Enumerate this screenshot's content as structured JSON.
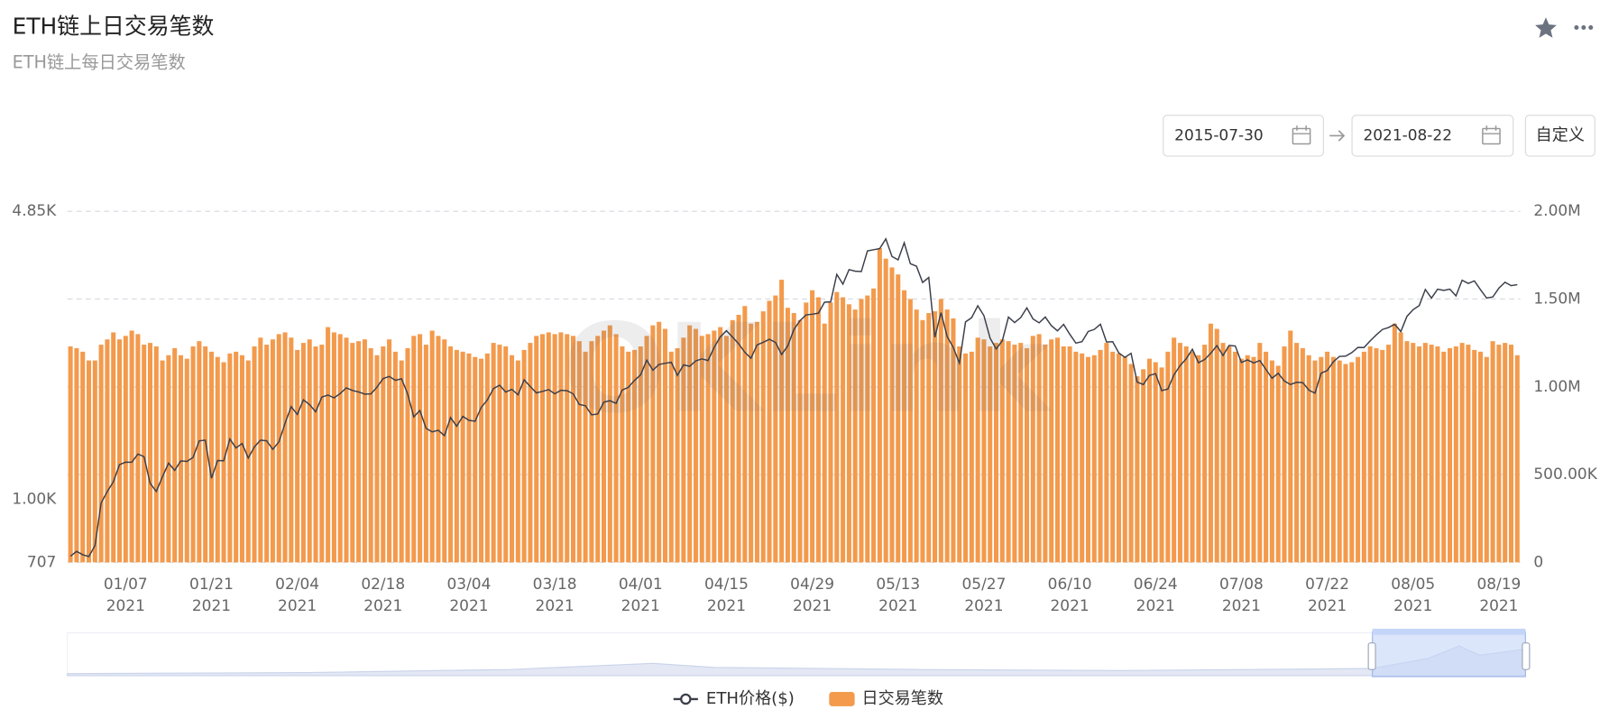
{
  "chart_data": {
    "type": "bar",
    "title": "ETH链上日交易笔数",
    "subtitle": "ETH链上每日交易笔数",
    "categories": [
      null,
      null,
      null,
      null,
      null,
      null,
      null,
      null,
      null,
      "01/07\n2021",
      null,
      null,
      null,
      null,
      null,
      null,
      null,
      null,
      null,
      null,
      null,
      null,
      null,
      "01/21\n2021",
      null,
      null,
      null,
      null,
      null,
      null,
      null,
      null,
      null,
      null,
      null,
      null,
      null,
      "02/04\n2021",
      null,
      null,
      null,
      null,
      null,
      null,
      null,
      null,
      null,
      null,
      null,
      null,
      null,
      "02/18\n2021",
      null,
      null,
      null,
      null,
      null,
      null,
      null,
      null,
      null,
      null,
      null,
      null,
      null,
      "03/04\n2021",
      null,
      null,
      null,
      null,
      null,
      null,
      null,
      null,
      null,
      null,
      null,
      null,
      null,
      "03/18\n2021",
      null,
      null,
      null,
      null,
      null,
      null,
      null,
      null,
      null,
      null,
      null,
      null,
      null,
      "04/01\n2021",
      null,
      null,
      null,
      null,
      null,
      null,
      null,
      null,
      null,
      null,
      null,
      null,
      null,
      "04/15\n2021",
      null,
      null,
      null,
      null,
      null,
      null,
      null,
      null,
      null,
      null,
      null,
      null,
      null,
      "04/29\n2021",
      null,
      null,
      null,
      null,
      null,
      null,
      null,
      null,
      null,
      null,
      null,
      null,
      null,
      "05/13\n2021",
      null,
      null,
      null,
      null,
      null,
      null,
      null,
      null,
      null,
      null,
      null,
      null,
      null,
      "05/27\n2021",
      null,
      null,
      null,
      null,
      null,
      null,
      null,
      null,
      null,
      null,
      null,
      null,
      null,
      "06/10\n2021",
      null,
      null,
      null,
      null,
      null,
      null,
      null,
      null,
      null,
      null,
      null,
      null,
      null,
      "06/24\n2021",
      null,
      null,
      null,
      null,
      null,
      null,
      null,
      null,
      null,
      null,
      null,
      null,
      null,
      "07/08\n2021",
      null,
      null,
      null,
      null,
      null,
      null,
      null,
      null,
      null,
      null,
      null,
      null,
      null,
      "07/22\n2021",
      null,
      null,
      null,
      null,
      null,
      null,
      null,
      null,
      null,
      null,
      null,
      null,
      null,
      "08/05\n2021",
      null,
      null,
      null,
      null,
      null,
      null,
      null,
      null,
      null,
      null,
      null,
      null,
      null,
      "08/19\n2021",
      null,
      null,
      null
    ],
    "series": [
      {
        "name": "ETH价格($)",
        "type": "line",
        "color": "#3b3f4a",
        "values": [
          731,
          751,
          737,
          730,
          775,
          979,
          1042,
          1100,
          1208,
          1225,
          1224,
          1281,
          1262,
          1090,
          1043,
          1130,
          1218,
          1171,
          1233,
          1230,
          1257,
          1377,
          1382,
          1121,
          1236,
          1234,
          1391,
          1324,
          1357,
          1253,
          1332,
          1382,
          1377,
          1314,
          1369,
          1515,
          1661,
          1591,
          1724,
          1679,
          1614,
          1750,
          1770,
          1743,
          1785,
          1841,
          1815,
          1800,
          1779,
          1781,
          1848,
          1937,
          1960,
          1919,
          1935,
          1781,
          1570,
          1626,
          1475,
          1446,
          1459,
          1416,
          1564,
          1492,
          1575,
          1541,
          1533,
          1654,
          1723,
          1834,
          1868,
          1799,
          1826,
          1772,
          1924,
          1854,
          1791,
          1806,
          1823,
          1782,
          1817,
          1812,
          1782,
          1681,
          1669,
          1588,
          1595,
          1702,
          1716,
          1691,
          1819,
          1846,
          1918,
          1977,
          2143,
          2028,
          2093,
          2107,
          2118,
          1971,
          2088,
          2072,
          2135,
          2158,
          2139,
          2299,
          2435,
          2519,
          2431,
          2344,
          2237,
          2166,
          2330,
          2364,
          2403,
          2363,
          2211,
          2317,
          2534,
          2662,
          2747,
          2757,
          2773,
          2945,
          2950,
          3431,
          3253,
          3522,
          3491,
          3484,
          3902,
          3928,
          3952,
          4168,
          3785,
          3716,
          4079,
          3638,
          3588,
          3282,
          3374,
          2430,
          2782,
          2441,
          2298,
          2109,
          2643,
          2706,
          2888,
          2736,
          2419,
          2279,
          2384,
          2714,
          2634,
          2707,
          2855,
          2688,
          2630,
          2715,
          2590,
          2517,
          2608,
          2471,
          2353,
          2372,
          2508,
          2537,
          2610,
          2367,
          2372,
          2230,
          2177,
          2225,
          1900,
          1875,
          1971,
          1990,
          1813,
          1829,
          1978,
          2080,
          2160,
          2275,
          2113,
          2150,
          2226,
          2321,
          2198,
          2324,
          2316,
          2116,
          2146,
          2111,
          2139,
          2037,
          1941,
          1994,
          1912,
          1875,
          1898,
          1895,
          1819,
          1788,
          1995,
          2025,
          2124,
          2188,
          2191,
          2233,
          2298,
          2297,
          2382,
          2462,
          2536,
          2563,
          2609,
          2507,
          2725,
          2827,
          2890,
          3158,
          3012,
          3163,
          3143,
          3164,
          3048,
          3322,
          3265,
          3310,
          3154,
          3013,
          3030,
          3182,
          3286,
          3226,
          3242
        ]
      },
      {
        "name": "日交易笔数",
        "type": "bar",
        "axis": "y2",
        "color": "#f39a4c",
        "values": [
          1230000,
          1220000,
          1200000,
          1150000,
          1150000,
          1240000,
          1270000,
          1310000,
          1270000,
          1290000,
          1320000,
          1300000,
          1240000,
          1250000,
          1230000,
          1150000,
          1180000,
          1220000,
          1180000,
          1160000,
          1230000,
          1260000,
          1230000,
          1200000,
          1170000,
          1140000,
          1190000,
          1200000,
          1180000,
          1150000,
          1230000,
          1280000,
          1240000,
          1270000,
          1300000,
          1310000,
          1280000,
          1210000,
          1250000,
          1270000,
          1230000,
          1240000,
          1340000,
          1310000,
          1300000,
          1280000,
          1250000,
          1260000,
          1270000,
          1220000,
          1180000,
          1230000,
          1270000,
          1200000,
          1150000,
          1220000,
          1290000,
          1300000,
          1240000,
          1320000,
          1290000,
          1270000,
          1230000,
          1210000,
          1200000,
          1190000,
          1170000,
          1160000,
          1190000,
          1250000,
          1240000,
          1230000,
          1180000,
          1150000,
          1210000,
          1250000,
          1290000,
          1300000,
          1310000,
          1300000,
          1310000,
          1300000,
          1290000,
          1260000,
          1200000,
          1260000,
          1290000,
          1320000,
          1350000,
          1300000,
          1230000,
          1200000,
          1210000,
          1230000,
          1290000,
          1350000,
          1370000,
          1330000,
          1200000,
          1220000,
          1280000,
          1350000,
          1330000,
          1290000,
          1300000,
          1320000,
          1340000,
          1290000,
          1380000,
          1410000,
          1460000,
          1360000,
          1370000,
          1430000,
          1490000,
          1520000,
          1610000,
          1450000,
          1420000,
          1380000,
          1480000,
          1550000,
          1510000,
          1360000,
          1480000,
          1540000,
          1510000,
          1470000,
          1440000,
          1500000,
          1520000,
          1560000,
          1790000,
          1730000,
          1680000,
          1640000,
          1550000,
          1500000,
          1440000,
          1380000,
          1420000,
          1430000,
          1500000,
          1440000,
          1390000,
          1230000,
          1190000,
          1200000,
          1280000,
          1270000,
          1230000,
          1250000,
          1270000,
          1260000,
          1240000,
          1250000,
          1220000,
          1290000,
          1300000,
          1240000,
          1270000,
          1280000,
          1230000,
          1230000,
          1200000,
          1190000,
          1170000,
          1180000,
          1210000,
          1250000,
          1200000,
          1190000,
          1170000,
          1130000,
          1060000,
          1100000,
          1160000,
          1140000,
          1110000,
          1200000,
          1280000,
          1250000,
          1230000,
          1200000,
          1180000,
          1240000,
          1360000,
          1330000,
          1250000,
          1230000,
          1200000,
          1160000,
          1180000,
          1170000,
          1250000,
          1200000,
          1150000,
          1120000,
          1230000,
          1320000,
          1250000,
          1220000,
          1180000,
          1150000,
          1170000,
          1200000,
          1170000,
          1150000,
          1130000,
          1140000,
          1170000,
          1200000,
          1230000,
          1220000,
          1210000,
          1240000,
          1360000,
          1310000,
          1260000,
          1250000,
          1230000,
          1250000,
          1240000,
          1230000,
          1200000,
          1220000,
          1230000,
          1250000,
          1240000,
          1210000,
          1200000,
          1170000,
          1260000,
          1240000,
          1250000,
          1240000,
          1180000
        ]
      }
    ],
    "ylim": [
      707,
      4850
    ],
    "y_scale": "log",
    "yticks": [
      707,
      {
        "value": 1000,
        "label": "1.00K"
      },
      {
        "value": 4850,
        "label": "4.85K"
      }
    ],
    "y2lim": [
      0,
      2000000
    ],
    "y2ticks": [
      0,
      {
        "value": 500000,
        "label": "500.00K"
      },
      {
        "value": 1000000,
        "label": "1.00M"
      },
      {
        "value": 1500000,
        "label": "1.50M"
      },
      {
        "value": 2000000,
        "label": "2.00M"
      }
    ],
    "grid": true
  },
  "controls": {
    "start_date": "2015-07-30",
    "end_date": "2021-08-22",
    "button": "自定义"
  },
  "watermark": "OKLink"
}
